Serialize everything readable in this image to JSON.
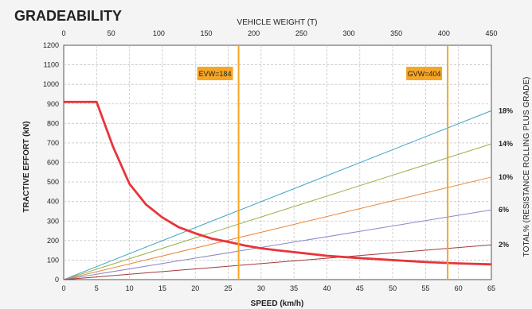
{
  "chart_data": {
    "type": "line",
    "title": "GRADEABILITY",
    "xlabel": "SPEED (km/h)",
    "ylabel": "TRACTIVE EFFORT (kN)",
    "x2label": "VEHICLE WEIGHT (T)",
    "y2label": "TOTAL% (RESISTANCE ROLLING PLUS GRADE)",
    "xlim": [
      0,
      65
    ],
    "ylim": [
      0,
      1200
    ],
    "x2lim": [
      0,
      450
    ],
    "xticks": [
      0,
      5,
      10,
      15,
      20,
      25,
      30,
      35,
      40,
      45,
      50,
      55,
      60,
      65
    ],
    "yticks": [
      0,
      100,
      200,
      300,
      400,
      500,
      600,
      700,
      800,
      900,
      1000,
      1100,
      1200
    ],
    "x2ticks": [
      0,
      50,
      100,
      150,
      200,
      250,
      300,
      350,
      400,
      450
    ],
    "grid": true,
    "tractive_effort": {
      "color": "#e8353a",
      "x": [
        0,
        5,
        7.5,
        10,
        12.5,
        15,
        17.5,
        20,
        22.5,
        25,
        27.5,
        30,
        32.5,
        35,
        40,
        45,
        50,
        55,
        60,
        65
      ],
      "y": [
        910,
        910,
        680,
        490,
        385,
        318,
        268,
        237,
        210,
        193,
        175,
        160,
        150,
        141,
        122,
        110,
        100,
        90,
        83,
        78
      ]
    },
    "grade_lines": [
      {
        "label": "18%",
        "color": "#3fa4c4",
        "weight": [
          0,
          450
        ],
        "effort": [
          0,
          865
        ]
      },
      {
        "label": "14%",
        "color": "#98b34a",
        "weight": [
          0,
          450
        ],
        "effort": [
          0,
          695
        ]
      },
      {
        "label": "10%",
        "color": "#e8853a",
        "weight": [
          0,
          450
        ],
        "effort": [
          0,
          525
        ]
      },
      {
        "label": "6%",
        "color": "#8e86c8",
        "weight": [
          0,
          450
        ],
        "effort": [
          0,
          357
        ]
      },
      {
        "label": "2%",
        "color": "#a13a3a",
        "weight": [
          0,
          450
        ],
        "effort": [
          0,
          178
        ]
      }
    ],
    "weight_markers": [
      {
        "label": "EVW=184",
        "weight": 184
      },
      {
        "label": "GVW=404",
        "weight": 404
      }
    ],
    "marker_color": "#f6a623"
  }
}
